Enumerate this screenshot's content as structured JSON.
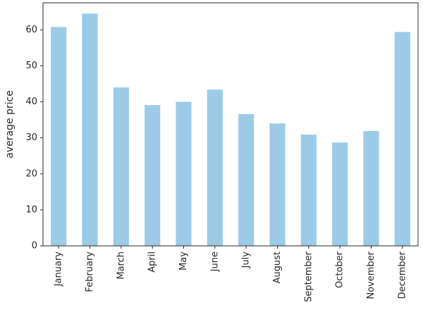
{
  "chart_data": {
    "type": "bar",
    "title": "",
    "xlabel": "",
    "ylabel": "average price",
    "categories": [
      "January",
      "February",
      "March",
      "April",
      "May",
      "June",
      "July",
      "August",
      "September",
      "October",
      "November",
      "December"
    ],
    "values": [
      60.8,
      64.5,
      44.0,
      39.1,
      40.0,
      43.4,
      36.6,
      34.0,
      30.9,
      28.7,
      31.9,
      59.4
    ],
    "ylim": [
      0,
      67.5
    ],
    "yticks": [
      0,
      10,
      20,
      30,
      40,
      50,
      60
    ],
    "grid": false,
    "legend": "none",
    "bar_color": "#9ccbe8",
    "axis_color": "#262626"
  }
}
